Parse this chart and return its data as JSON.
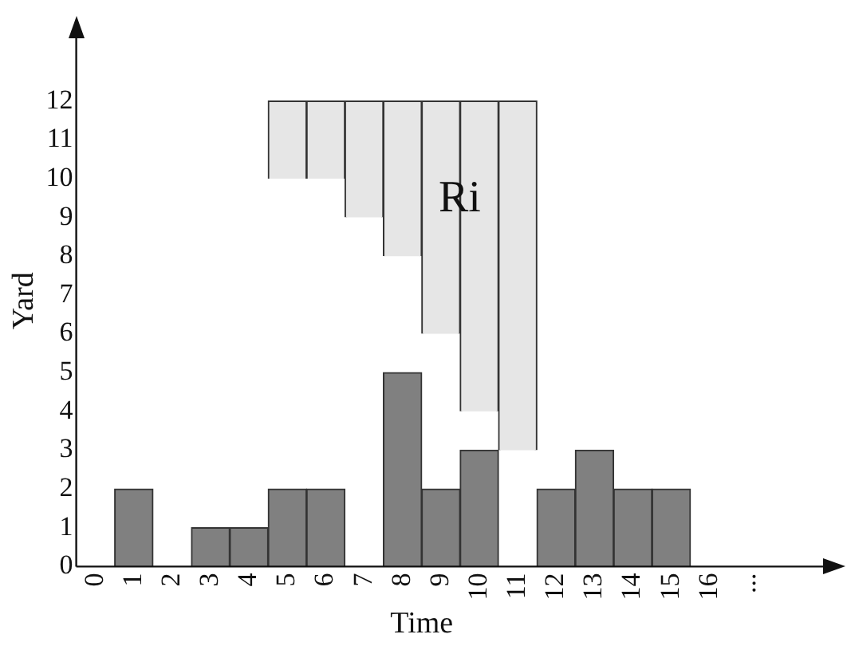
{
  "chart_data": {
    "type": "bar",
    "xlabel": "Time",
    "ylabel": "Yard",
    "categories": [
      "0",
      "1",
      "2",
      "3",
      "4",
      "5",
      "6",
      "7",
      "8",
      "9",
      "10",
      "11",
      "12",
      "13",
      "14",
      "15",
      "16",
      "..."
    ],
    "series": [
      {
        "color": "#808080",
        "values": [
          null,
          2,
          null,
          1,
          1,
          2,
          2,
          null,
          5,
          2,
          3,
          null,
          2,
          3,
          2,
          2,
          null,
          null
        ]
      },
      {
        "color": "#e6e6e6",
        "values": [
          null,
          null,
          null,
          null,
          null,
          2,
          2,
          3,
          4,
          6,
          8,
          9,
          null,
          null,
          null,
          null,
          null,
          null
        ],
        "base": [
          null,
          null,
          null,
          null,
          null,
          10,
          10,
          9,
          8,
          6,
          4,
          3,
          null,
          null,
          null,
          null,
          null,
          null
        ]
      }
    ],
    "ylim": [
      0,
      13.7
    ],
    "yticks": [
      0,
      1,
      2,
      3,
      4,
      5,
      6,
      7,
      8,
      9,
      10,
      11,
      12
    ],
    "annotations": [
      "Ri"
    ],
    "grid": false,
    "legend": false
  }
}
